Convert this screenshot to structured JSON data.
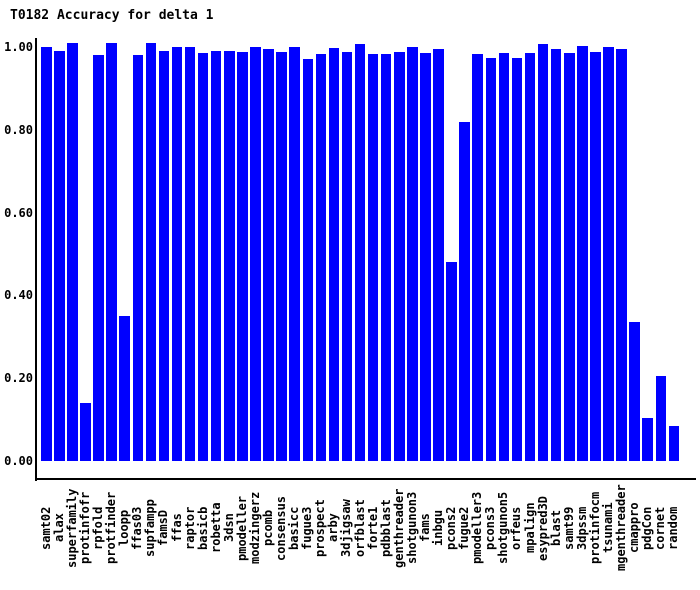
{
  "window": {
    "background_color": "#ffffff",
    "text_color": "#000000"
  },
  "chart_data": {
    "type": "bar",
    "title": "T0182 Accuracy for delta 1",
    "xlabel": "",
    "ylabel": "",
    "grid": "off",
    "legend": "none",
    "x_label_rotation": -90,
    "bar_color": "#0000ff",
    "axis_color": "#000000",
    "ylim": [
      0.0,
      1.01
    ],
    "yticks": [
      "1.00",
      "0.80",
      "0.60",
      "0.40",
      "0.20",
      "0.00"
    ],
    "ytick_values": [
      1.0,
      0.8,
      0.6,
      0.4,
      0.2,
      0.0
    ],
    "categories": [
      "samt02",
      "alax",
      "superfamily",
      "protinfofr",
      "rpfold",
      "protfinder",
      "loopp",
      "ffas03",
      "supfampp",
      "famsD",
      "ffas",
      "raptor",
      "basicb",
      "robetta",
      "3dsn",
      "pmodeller",
      "modzingerz",
      "pcomb",
      "consensus",
      "basicc",
      "fugue3",
      "prospect",
      "arby",
      "3djigsaw",
      "orfblast",
      "forte1",
      "pdbblast",
      "genthreader",
      "shotgunon3",
      "fams",
      "inbgu",
      "pcons2",
      "fugue2",
      "pmodeller3",
      "pcons3",
      "shotgunon5",
      "orfeus",
      "mpalign",
      "esypred3D",
      "blast",
      "samt99",
      "3dpssm",
      "protinfocm",
      "tsunami",
      "mgenthreader",
      "cmappro",
      "pdgCon",
      "cornet",
      "random"
    ],
    "values": [
      1.0,
      0.99,
      1.01,
      0.14,
      0.98,
      1.01,
      0.35,
      0.98,
      1.01,
      0.99,
      1.0,
      1.0,
      0.985,
      0.99,
      0.99,
      0.988,
      1.0,
      0.996,
      0.988,
      1.0,
      0.972,
      0.983,
      0.998,
      0.988,
      1.008,
      0.983,
      0.983,
      0.988,
      1.0,
      0.985,
      0.995,
      0.48,
      0.82,
      0.982,
      0.974,
      0.986,
      0.974,
      0.986,
      1.008,
      0.994,
      0.986,
      1.002,
      0.988,
      1.0,
      0.996,
      0.335,
      0.105,
      0.205,
      0.085
    ]
  }
}
